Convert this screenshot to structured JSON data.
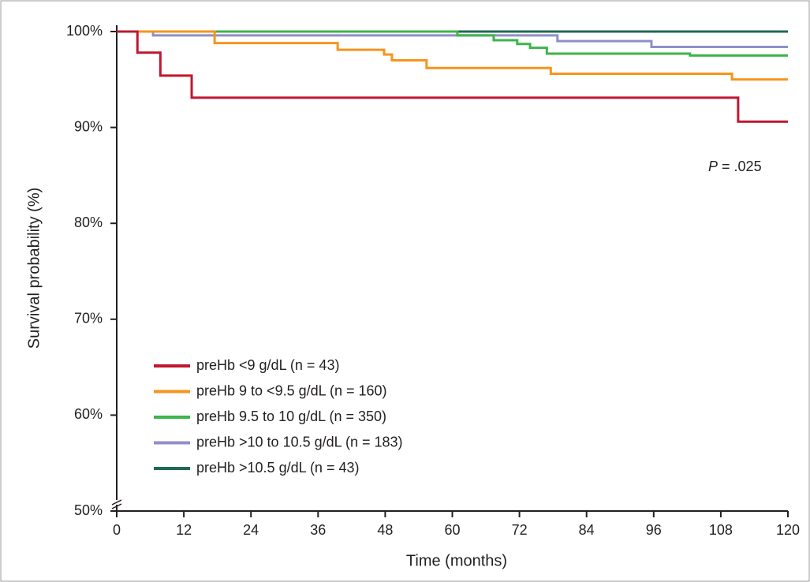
{
  "chart_data": {
    "type": "line",
    "step": "post",
    "xlabel": "Time (months)",
    "ylabel": "Survival probability (%)",
    "annotation": {
      "italic": "P",
      "text": "= .025"
    },
    "xlim": [
      0,
      120
    ],
    "xticks": [
      0,
      12,
      24,
      36,
      48,
      60,
      72,
      84,
      96,
      108,
      120
    ],
    "ylim": [
      50,
      100
    ],
    "yticks": [
      {
        "value": 50,
        "label": "50%"
      },
      {
        "value": 60,
        "label": "60%"
      },
      {
        "value": 70,
        "label": "70%"
      },
      {
        "value": 80,
        "label": "80%"
      },
      {
        "value": 90,
        "label": "90%"
      },
      {
        "value": 100,
        "label": "100%"
      }
    ],
    "axis_break": true,
    "legend": "lower left",
    "series": [
      {
        "name": "preHb <9 g/dL (n = 43)",
        "color": "#c0162f",
        "x": [
          0,
          3.7,
          7.8,
          13.4,
          111.1,
          120
        ],
        "values": [
          100,
          97.8,
          95.4,
          93.1,
          90.6,
          90.6
        ]
      },
      {
        "name": "preHb 9 to <9.5 g/dL (n = 160)",
        "color": "#f7941d",
        "x": [
          0,
          17.5,
          39.5,
          47.8,
          49.2,
          55.4,
          77.6,
          110,
          120
        ],
        "values": [
          100,
          98.8,
          98.1,
          97.6,
          97.0,
          96.2,
          95.6,
          95.0,
          95.0
        ]
      },
      {
        "name": "preHb 9.5 to 10 g/dL (n = 350)",
        "color": "#3cb54a",
        "x": [
          0,
          60.9,
          67.4,
          71.6,
          73.9,
          76.9,
          102.5,
          120
        ],
        "values": [
          100,
          99.6,
          99.1,
          98.7,
          98.3,
          97.7,
          97.5,
          97.5
        ]
      },
      {
        "name": "preHb >10 to 10.5 g/dL (n = 183)",
        "color": "#8f8fc8",
        "x": [
          0,
          6.5,
          78.8,
          95.6,
          120
        ],
        "values": [
          100,
          99.6,
          99.0,
          98.4,
          98.4
        ]
      },
      {
        "name": "preHb >10.5 g/dL (n = 43)",
        "color": "#1e6b52",
        "x": [
          0,
          120
        ],
        "values": [
          100,
          100
        ]
      }
    ]
  }
}
